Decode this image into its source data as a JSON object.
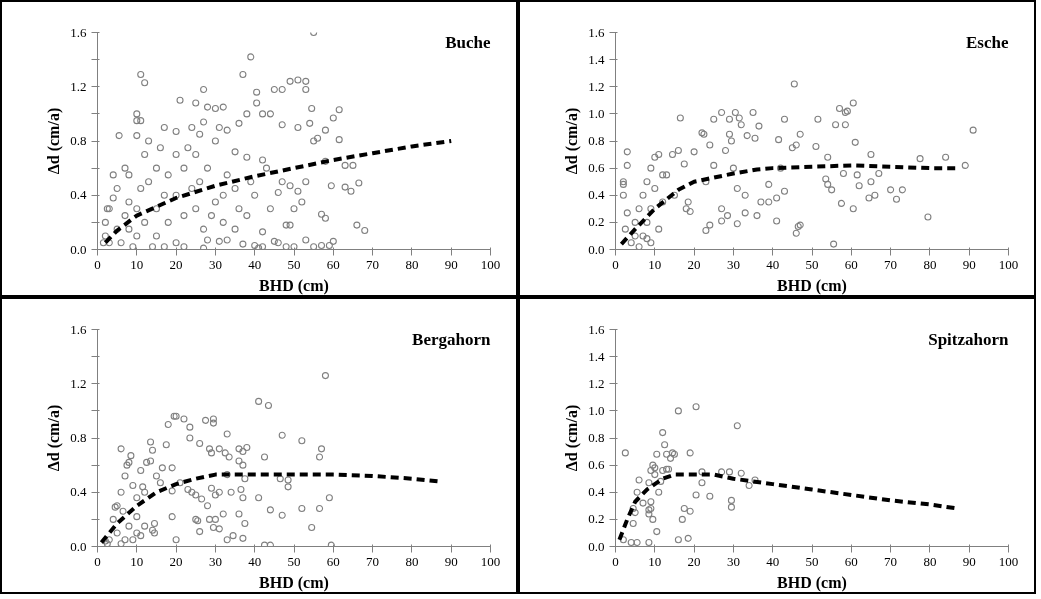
{
  "chart_data": [
    {
      "type": "scatter",
      "title": "Buche",
      "xlabel": "BHD (cm)",
      "ylabel": "Δd (cm/a)",
      "xlim": [
        0,
        100
      ],
      "ylim": [
        0,
        1.6
      ],
      "xticks": [
        0,
        10,
        20,
        30,
        40,
        50,
        60,
        70,
        80,
        90,
        100
      ],
      "yticks": [
        {
          "value": 0.0,
          "label": "0.0"
        },
        {
          "value": 0.2,
          "label": null
        },
        {
          "value": 0.4,
          "label": "0.4"
        },
        {
          "value": 0.6,
          "label": null
        },
        {
          "value": 0.8,
          "label": "0.8"
        },
        {
          "value": 1.0,
          "label": null
        },
        {
          "value": 1.2,
          "label": "1.2"
        },
        {
          "value": 1.4,
          "label": null
        },
        {
          "value": 1.6,
          "label": "1.6"
        }
      ],
      "grid": false,
      "series": [
        {
          "marker": "circle",
          "color": "#808080",
          "x": [
            55,
            39,
            11,
            12,
            37,
            40.5,
            27,
            21,
            25,
            28,
            30,
            32,
            40.5,
            45,
            47,
            49,
            51,
            53,
            53,
            54.5,
            38,
            42,
            44,
            61.5,
            60,
            10,
            10,
            11,
            5.5,
            10,
            17,
            20,
            24,
            27,
            33,
            36,
            47,
            51,
            54,
            58,
            61.5,
            55,
            56,
            58,
            63,
            65,
            66.5,
            63,
            64.5,
            59.5,
            66,
            68,
            57,
            58,
            60,
            57,
            59,
            55,
            53,
            50,
            48,
            45,
            46,
            42,
            40,
            41,
            37,
            33,
            31,
            28,
            27,
            22,
            48,
            49,
            51,
            52,
            53,
            49,
            50,
            46,
            44,
            43,
            42,
            42,
            47,
            35,
            38,
            39,
            35,
            30,
            33,
            28,
            25,
            26,
            30,
            22,
            24,
            20,
            18,
            15,
            13,
            15,
            12,
            8,
            8,
            5,
            4,
            3,
            2,
            2,
            3,
            5,
            7,
            10,
            10,
            12,
            15,
            18,
            20,
            22,
            25,
            27,
            32,
            35,
            38,
            40,
            6,
            9,
            14,
            17,
            13,
            16,
            20,
            23,
            31,
            36,
            29,
            17,
            7,
            4,
            8,
            11,
            26,
            32,
            2.5,
            1.5
          ],
          "values": [
            1.6,
            1.42,
            1.29,
            1.23,
            1.29,
            1.16,
            1.18,
            1.1,
            1.08,
            1.05,
            1.04,
            1.05,
            1.08,
            1.18,
            1.18,
            1.24,
            1.25,
            1.24,
            1.18,
            1.04,
            1.0,
            1.0,
            1.0,
            1.03,
            0.97,
            1.0,
            0.95,
            0.95,
            0.84,
            0.84,
            0.9,
            0.87,
            0.9,
            0.94,
            0.88,
            0.93,
            0.92,
            0.9,
            0.93,
            0.88,
            0.81,
            0.8,
            0.82,
            0.65,
            0.62,
            0.62,
            0.49,
            0.46,
            0.43,
            0.47,
            0.18,
            0.14,
            0.26,
            0.23,
            0.06,
            0.03,
            0.03,
            0.02,
            0.07,
            0.02,
            0.02,
            0.06,
            0.05,
            0.02,
            0.03,
            0.01,
            0.04,
            0.07,
            0.06,
            0.07,
            0.01,
            0.02,
            0.18,
            0.18,
            0.43,
            0.35,
            0.5,
            0.47,
            0.3,
            0.42,
            0.3,
            0.6,
            0.66,
            0.13,
            0.5,
            0.72,
            0.68,
            0.5,
            0.45,
            0.35,
            0.55,
            0.6,
            0.7,
            0.5,
            0.8,
            0.6,
            0.45,
            0.4,
            0.55,
            0.6,
            0.5,
            0.3,
            0.7,
            0.55,
            0.35,
            0.45,
            0.55,
            0.3,
            0.1,
            0.2,
            0.05,
            0.15,
            0.25,
            0.3,
            0.1,
            0.2,
            0.1,
            0.2,
            0.05,
            0.25,
            0.3,
            0.15,
            0.2,
            0.15,
            0.25,
            0.4,
            0.05,
            0.02,
            0.02,
            0.02,
            0.8,
            0.75,
            0.7,
            0.75,
            0.9,
            0.3,
            0.25,
            0.4,
            0.6,
            0.38,
            0.15,
            0.45,
            0.85,
            0.4,
            0.3,
            0.05
          ]
        },
        {
          "type": "line",
          "marker": "none",
          "line_style": "dashed",
          "color": "#000000",
          "x": [
            2,
            5,
            10,
            20,
            30,
            40,
            50,
            60,
            70,
            80,
            90
          ],
          "values": [
            0.05,
            0.14,
            0.25,
            0.38,
            0.47,
            0.54,
            0.6,
            0.66,
            0.71,
            0.76,
            0.8
          ]
        }
      ]
    },
    {
      "type": "scatter",
      "title": "Esche",
      "xlabel": "BHD (cm)",
      "ylabel": "Δd (cm/a)",
      "xlim": [
        0,
        100
      ],
      "ylim": [
        0,
        1.6
      ],
      "xticks": [
        0,
        10,
        20,
        30,
        40,
        50,
        60,
        70,
        80,
        90,
        100
      ],
      "yticks": [
        {
          "value": 0.0,
          "label": "0.0"
        },
        {
          "value": 0.2,
          "label": "0.2"
        },
        {
          "value": 0.4,
          "label": "0.4"
        },
        {
          "value": 0.6,
          "label": "0.6"
        },
        {
          "value": 0.8,
          "label": "0.8"
        },
        {
          "value": 1.0,
          "label": "1.0"
        },
        {
          "value": 1.2,
          "label": "1.2"
        },
        {
          "value": 1.4,
          "label": "1.4"
        },
        {
          "value": 1.6,
          "label": "1.6"
        }
      ],
      "grid": false,
      "series": [
        {
          "marker": "circle",
          "color": "#808080",
          "x": [
            3,
            3,
            2,
            2,
            2,
            3,
            2.5,
            16.5,
            27,
            30.5,
            35,
            31.5,
            25,
            29,
            32,
            36.5,
            22,
            22.5,
            29,
            33.5,
            35.5,
            45.5,
            57,
            58.5,
            59,
            60.5,
            56,
            58.5,
            51.5,
            43,
            41.5,
            47,
            46,
            45,
            51,
            61,
            65,
            77.5,
            84,
            89,
            91,
            79.5,
            73,
            71.5,
            70,
            66,
            64.5,
            65,
            67,
            62,
            61.5,
            60.5,
            57.5,
            55.5,
            55,
            54,
            53.5,
            54,
            58,
            46,
            46.5,
            47,
            43,
            41,
            41,
            42,
            39,
            39,
            37,
            36,
            33,
            31,
            27,
            24,
            23,
            23,
            25,
            24,
            20,
            17.5,
            16,
            14.5,
            18,
            19,
            18.5,
            28,
            29.5,
            30,
            31,
            33,
            27,
            28.5,
            11,
            10,
            9,
            12,
            8,
            7,
            6,
            5,
            5,
            4,
            6,
            7,
            8,
            9,
            10,
            11,
            12,
            13,
            15,
            9,
            8
          ],
          "values": [
            0.72,
            0.62,
            0.5,
            0.48,
            0.4,
            0.27,
            0.15,
            0.97,
            1.01,
            1.01,
            1.01,
            0.97,
            0.96,
            0.96,
            0.92,
            0.91,
            0.86,
            0.85,
            0.85,
            0.84,
            0.82,
            1.22,
            1.04,
            1.01,
            1.02,
            1.08,
            0.92,
            0.92,
            0.96,
            0.96,
            0.81,
            0.85,
            0.77,
            0.75,
            0.76,
            0.79,
            0.7,
            0.67,
            0.68,
            0.62,
            0.88,
            0.24,
            0.44,
            0.37,
            0.44,
            0.4,
            0.38,
            0.5,
            0.56,
            0.47,
            0.55,
            0.3,
            0.34,
            0.04,
            0.44,
            0.48,
            0.52,
            0.68,
            0.56,
            0.12,
            0.17,
            0.18,
            0.43,
            0.38,
            0.21,
            0.6,
            0.35,
            0.48,
            0.35,
            0.25,
            0.27,
            0.19,
            0.21,
            0.18,
            0.14,
            0.5,
            0.62,
            0.77,
            0.72,
            0.63,
            0.73,
            0.7,
            0.3,
            0.28,
            0.35,
            0.73,
            0.8,
            0.6,
            0.45,
            0.4,
            0.3,
            0.25,
            0.7,
            0.68,
            0.6,
            0.55,
            0.5,
            0.4,
            0.3,
            0.2,
            0.1,
            0.05,
            0.02,
            0.1,
            0.2,
            0.3,
            0.45,
            0.15,
            0.35,
            0.55,
            0.4,
            0.05,
            0.08
          ]
        },
        {
          "type": "line",
          "marker": "none",
          "line_style": "dashed",
          "color": "#000000",
          "x": [
            1.5,
            5,
            10,
            16,
            20,
            30,
            36,
            40,
            50,
            60,
            70,
            80,
            87
          ],
          "values": [
            0.04,
            0.15,
            0.3,
            0.44,
            0.5,
            0.56,
            0.59,
            0.6,
            0.61,
            0.62,
            0.61,
            0.6,
            0.6
          ]
        }
      ]
    },
    {
      "type": "scatter",
      "title": "Bergahorn",
      "xlabel": "BHD (cm)",
      "ylabel": "Δd (cm/a)",
      "xlim": [
        0,
        100
      ],
      "ylim": [
        0,
        1.6
      ],
      "xticks": [
        0,
        10,
        20,
        30,
        40,
        50,
        60,
        70,
        80,
        90,
        100
      ],
      "yticks": [
        {
          "value": 0.0,
          "label": "0.0"
        },
        {
          "value": 0.2,
          "label": null
        },
        {
          "value": 0.4,
          "label": "0.4"
        },
        {
          "value": 0.6,
          "label": null
        },
        {
          "value": 0.8,
          "label": "0.8"
        },
        {
          "value": 1.0,
          "label": null
        },
        {
          "value": 1.2,
          "label": "1.2"
        },
        {
          "value": 1.4,
          "label": null
        },
        {
          "value": 1.6,
          "label": "1.6"
        }
      ],
      "grid": false,
      "series": [
        {
          "marker": "circle",
          "color": "#808080",
          "x": [
            58,
            41,
            43.5,
            42.5,
            47,
            52,
            57,
            56.5,
            46.5,
            48.5,
            48.5,
            41,
            44,
            47,
            52,
            54.5,
            56.5,
            59,
            59.5,
            42.5,
            44,
            19.5,
            20,
            22,
            27.5,
            29.5,
            29.5,
            18,
            23.5,
            13.5,
            17.5,
            14,
            6,
            8.5,
            8,
            7.5,
            12.5,
            13.5,
            23.5,
            26,
            28.5,
            29,
            31,
            32.5,
            33,
            33.5,
            36,
            37,
            38,
            36,
            37,
            16.5,
            19,
            15,
            11,
            10,
            11.5,
            12,
            16,
            19,
            21,
            23,
            24,
            25,
            26.5,
            28,
            29,
            30,
            31,
            33,
            34,
            36.5,
            37,
            37.5,
            37.5,
            36,
            32,
            30,
            31,
            29.5,
            28.5,
            25,
            26,
            25.5,
            19,
            20,
            33,
            34.5,
            37,
            14,
            14.5,
            14.5,
            12,
            10,
            9,
            8,
            7,
            6,
            5,
            4.5,
            4,
            3,
            2,
            5,
            6,
            7,
            9,
            10,
            11,
            6.5,
            2.5
          ],
          "values": [
            1.26,
            1.07,
            1.04,
            0.66,
            0.82,
            0.78,
            0.72,
            0.66,
            0.5,
            0.49,
            0.44,
            0.36,
            0.27,
            0.23,
            0.28,
            0.14,
            0.28,
            0.36,
            0.01,
            0.01,
            0.01,
            0.96,
            0.96,
            0.94,
            0.93,
            0.94,
            0.91,
            0.9,
            0.88,
            0.77,
            0.75,
            0.71,
            0.72,
            0.67,
            0.62,
            0.6,
            0.62,
            0.63,
            0.8,
            0.76,
            0.72,
            0.69,
            0.72,
            0.69,
            0.83,
            0.66,
            0.72,
            0.7,
            0.73,
            0.63,
            0.6,
            0.58,
            0.58,
            0.52,
            0.56,
            0.36,
            0.44,
            0.4,
            0.47,
            0.41,
            0.47,
            0.42,
            0.4,
            0.38,
            0.35,
            0.3,
            0.43,
            0.38,
            0.4,
            0.53,
            0.4,
            0.42,
            0.36,
            0.5,
            0.17,
            0.24,
            0.24,
            0.2,
            0.13,
            0.14,
            0.2,
            0.2,
            0.11,
            0.19,
            0.22,
            0.05,
            0.05,
            0.08,
            0.06,
            0.12,
            0.17,
            0.1,
            0.15,
            0.1,
            0.05,
            0.15,
            0.05,
            0.02,
            0.3,
            0.29,
            0.2,
            0.05,
            0.04,
            0.1,
            0.4,
            0.52,
            0.45,
            0.22,
            0.08,
            0.26,
            0.02
          ]
        },
        {
          "type": "line",
          "marker": "none",
          "line_style": "dashed",
          "color": "#000000",
          "x": [
            1,
            5,
            10,
            15,
            20,
            25,
            30,
            40,
            50,
            60,
            70,
            80,
            87
          ],
          "values": [
            0.03,
            0.17,
            0.3,
            0.4,
            0.46,
            0.5,
            0.53,
            0.53,
            0.53,
            0.53,
            0.52,
            0.5,
            0.48
          ]
        }
      ]
    },
    {
      "type": "scatter",
      "title": "Spitzahorn",
      "xlabel": "BHD (cm)",
      "ylabel": "Δd (cm/a)",
      "xlim": [
        0,
        100
      ],
      "ylim": [
        0,
        1.6
      ],
      "xticks": [
        0,
        10,
        20,
        30,
        40,
        50,
        60,
        70,
        80,
        90,
        100
      ],
      "yticks": [
        {
          "value": 0.0,
          "label": "0.0"
        },
        {
          "value": 0.2,
          "label": "0.2"
        },
        {
          "value": 0.4,
          "label": "0.4"
        },
        {
          "value": 0.6,
          "label": "0.6"
        },
        {
          "value": 0.8,
          "label": "0.8"
        },
        {
          "value": 1.0,
          "label": "1.0"
        },
        {
          "value": 1.2,
          "label": "1.2"
        },
        {
          "value": 1.4,
          "label": "1.4"
        },
        {
          "value": 1.6,
          "label": "1.6"
        }
      ],
      "grid": false,
      "series": [
        {
          "marker": "circle",
          "color": "#808080",
          "x": [
            2.5,
            2,
            4,
            5.5,
            8.5,
            4.5,
            4.5,
            5,
            5.5,
            6,
            7,
            8.5,
            8.5,
            9,
            9,
            8.5,
            9,
            9.5,
            10,
            10,
            10.5,
            11,
            10.5,
            11.5,
            12,
            12,
            12.5,
            13,
            13,
            13.5,
            14,
            14.5,
            15,
            16,
            16,
            17,
            17.5,
            19,
            19,
            18.5,
            20.5,
            20.5,
            22,
            22,
            24,
            27,
            29,
            29.5,
            29.5,
            31,
            32,
            34,
            35.5,
            9.5
          ],
          "values": [
            0.69,
            0.05,
            0.03,
            0.03,
            0.03,
            0.17,
            0.28,
            0.25,
            0.4,
            0.49,
            0.32,
            0.24,
            0.27,
            0.28,
            0.33,
            0.47,
            0.56,
            0.6,
            0.58,
            0.53,
            0.68,
            0.4,
            0.11,
            0.48,
            0.56,
            0.84,
            0.75,
            0.68,
            0.57,
            0.57,
            0.65,
            0.69,
            0.68,
            1.0,
            0.05,
            0.2,
            0.28,
            0.26,
            0.69,
            0.06,
            1.03,
            0.38,
            0.55,
            0.47,
            0.37,
            0.55,
            0.55,
            0.34,
            0.29,
            0.89,
            0.54,
            0.45,
            0.49,
            0.2
          ]
        },
        {
          "type": "line",
          "marker": "none",
          "line_style": "dashed",
          "color": "#000000",
          "x": [
            1,
            3,
            5,
            8,
            12,
            15,
            20,
            25,
            30,
            40,
            50,
            60,
            70,
            80,
            87
          ],
          "values": [
            0.05,
            0.2,
            0.33,
            0.42,
            0.5,
            0.53,
            0.53,
            0.53,
            0.5,
            0.46,
            0.42,
            0.38,
            0.34,
            0.31,
            0.28
          ]
        }
      ]
    }
  ]
}
